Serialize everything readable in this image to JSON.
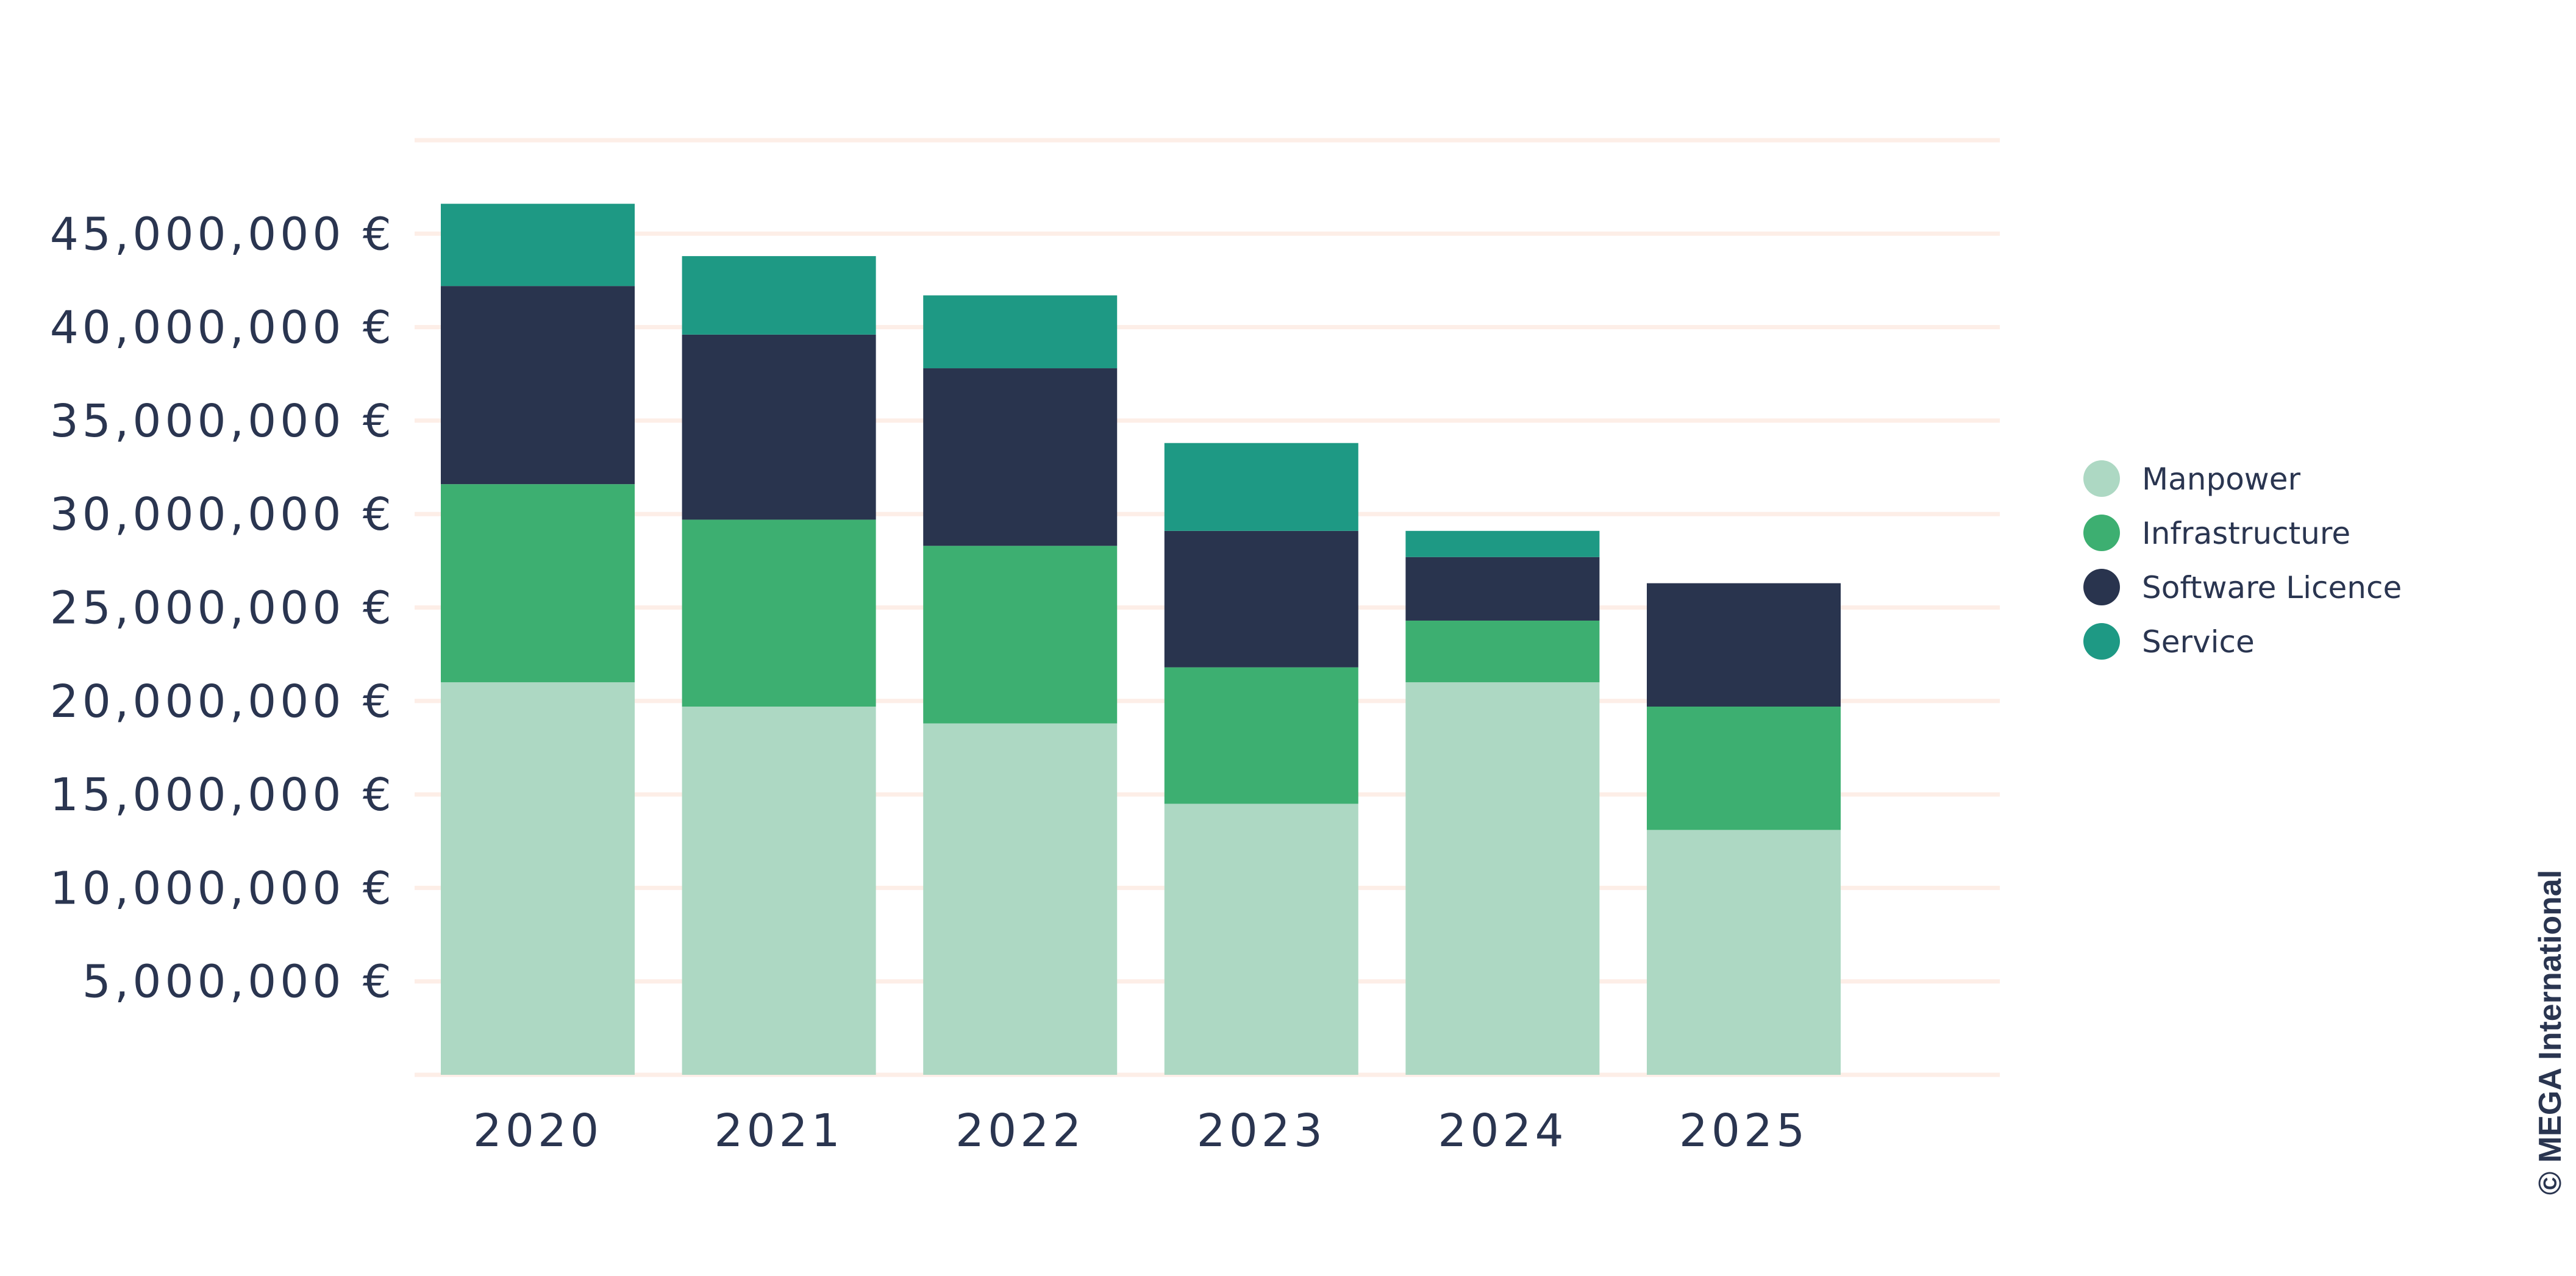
{
  "chart_data": {
    "type": "bar",
    "stacked": true,
    "categories": [
      "2020",
      "2021",
      "2022",
      "2023",
      "2024",
      "2025"
    ],
    "series": [
      {
        "name": "Manpower",
        "color": "#add8c3",
        "values": [
          21000000,
          19700000,
          18800000,
          14500000,
          21000000,
          13100000
        ]
      },
      {
        "name": "Infrastructure",
        "color": "#3daf71",
        "values": [
          10600000,
          10000000,
          9500000,
          7300000,
          3300000,
          6600000
        ]
      },
      {
        "name": "Software Licence",
        "color": "#29344e",
        "values": [
          10600000,
          9900000,
          9500000,
          7300000,
          3400000,
          6600000
        ]
      },
      {
        "name": "Service",
        "color": "#1e9984",
        "values": [
          4400000,
          4200000,
          3900000,
          4700000,
          1400000,
          0
        ]
      }
    ],
    "y_tick_labels": [
      "5,000,000 €",
      "10,000,000 €",
      "15,000,000 €",
      "20,000,000 €",
      "25,000,000 €",
      "30,000,000 €",
      "35,000,000 €",
      "40,000,000 €",
      "45,000,000 €"
    ],
    "ylim": [
      0,
      50000000
    ],
    "grid": true,
    "gridline_color": "#fdeee7",
    "legend_position": "right"
  },
  "copyright": "© MEGA International"
}
